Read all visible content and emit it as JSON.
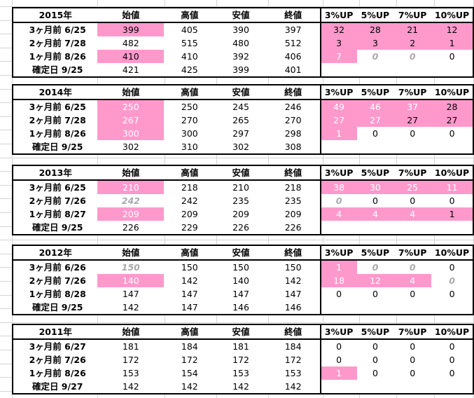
{
  "columns": [
    "始値",
    "高値",
    "安値",
    "終値",
    "3%UP",
    "5%UP",
    "7%UP",
    "10%UP"
  ],
  "blocks": [
    {
      "year": "2015年",
      "rows": [
        {
          "label": "3ヶ月前  6/25",
          "cells": [
            "399",
            "405",
            "390",
            "397",
            "32",
            "28",
            "21",
            "12"
          ],
          "style": [
            "pinkdark",
            "",
            "",
            "",
            "pinkdark",
            "pinkdark",
            "pinkdark",
            "pinkdark"
          ]
        },
        {
          "label": "2ヶ月前  7/28",
          "cells": [
            "482",
            "515",
            "480",
            "512",
            "3",
            "3",
            "2",
            "1"
          ],
          "style": [
            "",
            "",
            "",
            "",
            "pinkdark",
            "pinkdark",
            "pinkdark",
            "pinkdark"
          ]
        },
        {
          "label": "1ヶ月前  8/26",
          "cells": [
            "410",
            "410",
            "392",
            "406",
            "7",
            "0",
            "0",
            "0"
          ],
          "style": [
            "pinkdark",
            "",
            "",
            "",
            "pink",
            "italic",
            "italic",
            ""
          ]
        },
        {
          "label": "確定日    9/25",
          "cells": [
            "421",
            "425",
            "399",
            "401",
            "",
            "",
            "",
            ""
          ],
          "style": [
            "",
            "",
            "",
            "",
            "",
            "",
            "",
            ""
          ]
        }
      ]
    },
    {
      "year": "2014年",
      "rows": [
        {
          "label": "3ヶ月前  6/25",
          "cells": [
            "250",
            "250",
            "245",
            "246",
            "49",
            "46",
            "37",
            "28"
          ],
          "style": [
            "pink",
            "",
            "",
            "",
            "pink",
            "pink",
            "pink",
            "pinkdark"
          ]
        },
        {
          "label": "2ヶ月前  7/28",
          "cells": [
            "267",
            "270",
            "265",
            "270",
            "27",
            "27",
            "27",
            "27"
          ],
          "style": [
            "pink",
            "",
            "",
            "",
            "pink",
            "pink",
            "pinkdark",
            "pinkdark"
          ]
        },
        {
          "label": "1ヶ月前  8/26",
          "cells": [
            "300",
            "300",
            "297",
            "298",
            "1",
            "0",
            "0",
            "0"
          ],
          "style": [
            "pink",
            "",
            "",
            "",
            "pink",
            "",
            "",
            ""
          ]
        },
        {
          "label": "確定日    9/25",
          "cells": [
            "302",
            "310",
            "302",
            "308",
            "",
            "",
            "",
            ""
          ],
          "style": [
            "",
            "",
            "",
            "",
            "",
            "",
            "",
            ""
          ]
        }
      ]
    },
    {
      "year": "2013年",
      "rows": [
        {
          "label": "3ヶ月前  6/25",
          "cells": [
            "210",
            "218",
            "210",
            "218",
            "38",
            "30",
            "25",
            "11"
          ],
          "style": [
            "pink",
            "",
            "",
            "",
            "pink",
            "pink",
            "pink",
            "pink"
          ]
        },
        {
          "label": "2ヶ月前  7/26",
          "cells": [
            "242",
            "242",
            "235",
            "235",
            "0",
            "0",
            "0",
            "0"
          ],
          "style": [
            "italic",
            "",
            "",
            "",
            "italic",
            "",
            "",
            ""
          ]
        },
        {
          "label": "1ヶ月前  8/27",
          "cells": [
            "209",
            "209",
            "209",
            "209",
            "4",
            "4",
            "4",
            "1"
          ],
          "style": [
            "pink",
            "",
            "",
            "",
            "pink",
            "pink",
            "pink",
            "pinkdark"
          ]
        },
        {
          "label": "確定日    9/25",
          "cells": [
            "226",
            "229",
            "226",
            "226",
            "",
            "",
            "",
            ""
          ],
          "style": [
            "",
            "",
            "",
            "",
            "",
            "",
            "",
            ""
          ]
        }
      ]
    },
    {
      "year": "2012年",
      "rows": [
        {
          "label": "3ヶ月前  6/26",
          "cells": [
            "150",
            "150",
            "150",
            "150",
            "1",
            "0",
            "0",
            "0"
          ],
          "style": [
            "italic",
            "",
            "",
            "",
            "pink",
            "italic",
            "italic",
            ""
          ]
        },
        {
          "label": "2ヶ月前  7/26",
          "cells": [
            "140",
            "142",
            "140",
            "142",
            "18",
            "12",
            "4",
            "0"
          ],
          "style": [
            "pink",
            "",
            "",
            "",
            "pink",
            "pink",
            "pink",
            "italic"
          ]
        },
        {
          "label": "1ヶ月前  8/28",
          "cells": [
            "147",
            "147",
            "147",
            "147",
            "0",
            "0",
            "0",
            "0"
          ],
          "style": [
            "",
            "",
            "",
            "",
            "",
            "",
            "",
            ""
          ]
        },
        {
          "label": "確定日    9/25",
          "cells": [
            "142",
            "147",
            "146",
            "146",
            "",
            "",
            "",
            ""
          ],
          "style": [
            "",
            "",
            "",
            "",
            "",
            "",
            "",
            ""
          ]
        }
      ]
    },
    {
      "year": "2011年",
      "rows": [
        {
          "label": "3ヶ月前  6/27",
          "cells": [
            "181",
            "184",
            "181",
            "184",
            "0",
            "0",
            "0",
            "0"
          ],
          "style": [
            "",
            "",
            "",
            "",
            "",
            "",
            "",
            ""
          ]
        },
        {
          "label": "2ヶ月前  7/26",
          "cells": [
            "172",
            "172",
            "172",
            "172",
            "0",
            "0",
            "0",
            "0"
          ],
          "style": [
            "",
            "",
            "",
            "",
            "",
            "",
            "",
            ""
          ]
        },
        {
          "label": "1ヶ月前  8/26",
          "cells": [
            "153",
            "154",
            "153",
            "153",
            "1",
            "0",
            "0",
            "0"
          ],
          "style": [
            "",
            "",
            "",
            "",
            "pink",
            "",
            "",
            ""
          ]
        },
        {
          "label": "確定日    9/27",
          "cells": [
            "142",
            "142",
            "142",
            "142",
            "",
            "",
            "",
            ""
          ],
          "style": [
            "",
            "",
            "",
            "",
            "",
            "",
            "",
            ""
          ]
        }
      ]
    }
  ],
  "colors": {
    "highlight": "#ff99cc",
    "grid": "#d4d4d4",
    "italic_text": "#aaaaaa"
  }
}
